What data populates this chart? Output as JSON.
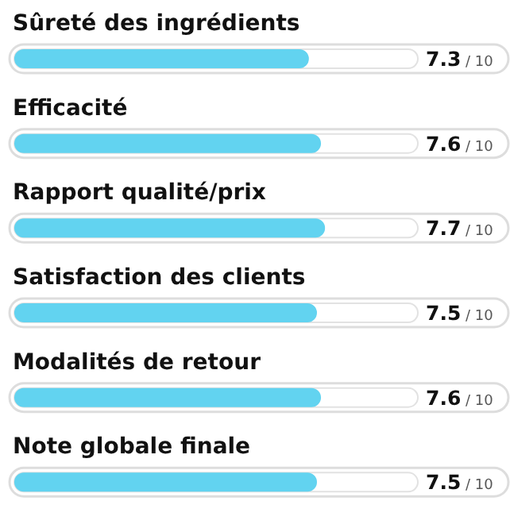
{
  "chart_data": {
    "type": "bar",
    "orientation": "horizontal",
    "categories": [
      "Sûreté des ingrédients",
      "Efficacité",
      "Rapport qualité/prix",
      "Satisfaction des clients",
      "Modalités de retour",
      "Note globale finale"
    ],
    "values": [
      7.3,
      7.6,
      7.7,
      7.5,
      7.6,
      7.5
    ],
    "data_labels": true,
    "annotations": [
      "/ 10",
      "/ 10",
      "/ 10",
      "/ 10",
      "/ 10",
      "/ 10"
    ],
    "xlim": [
      0,
      10
    ],
    "color": "#62d3f0"
  }
}
